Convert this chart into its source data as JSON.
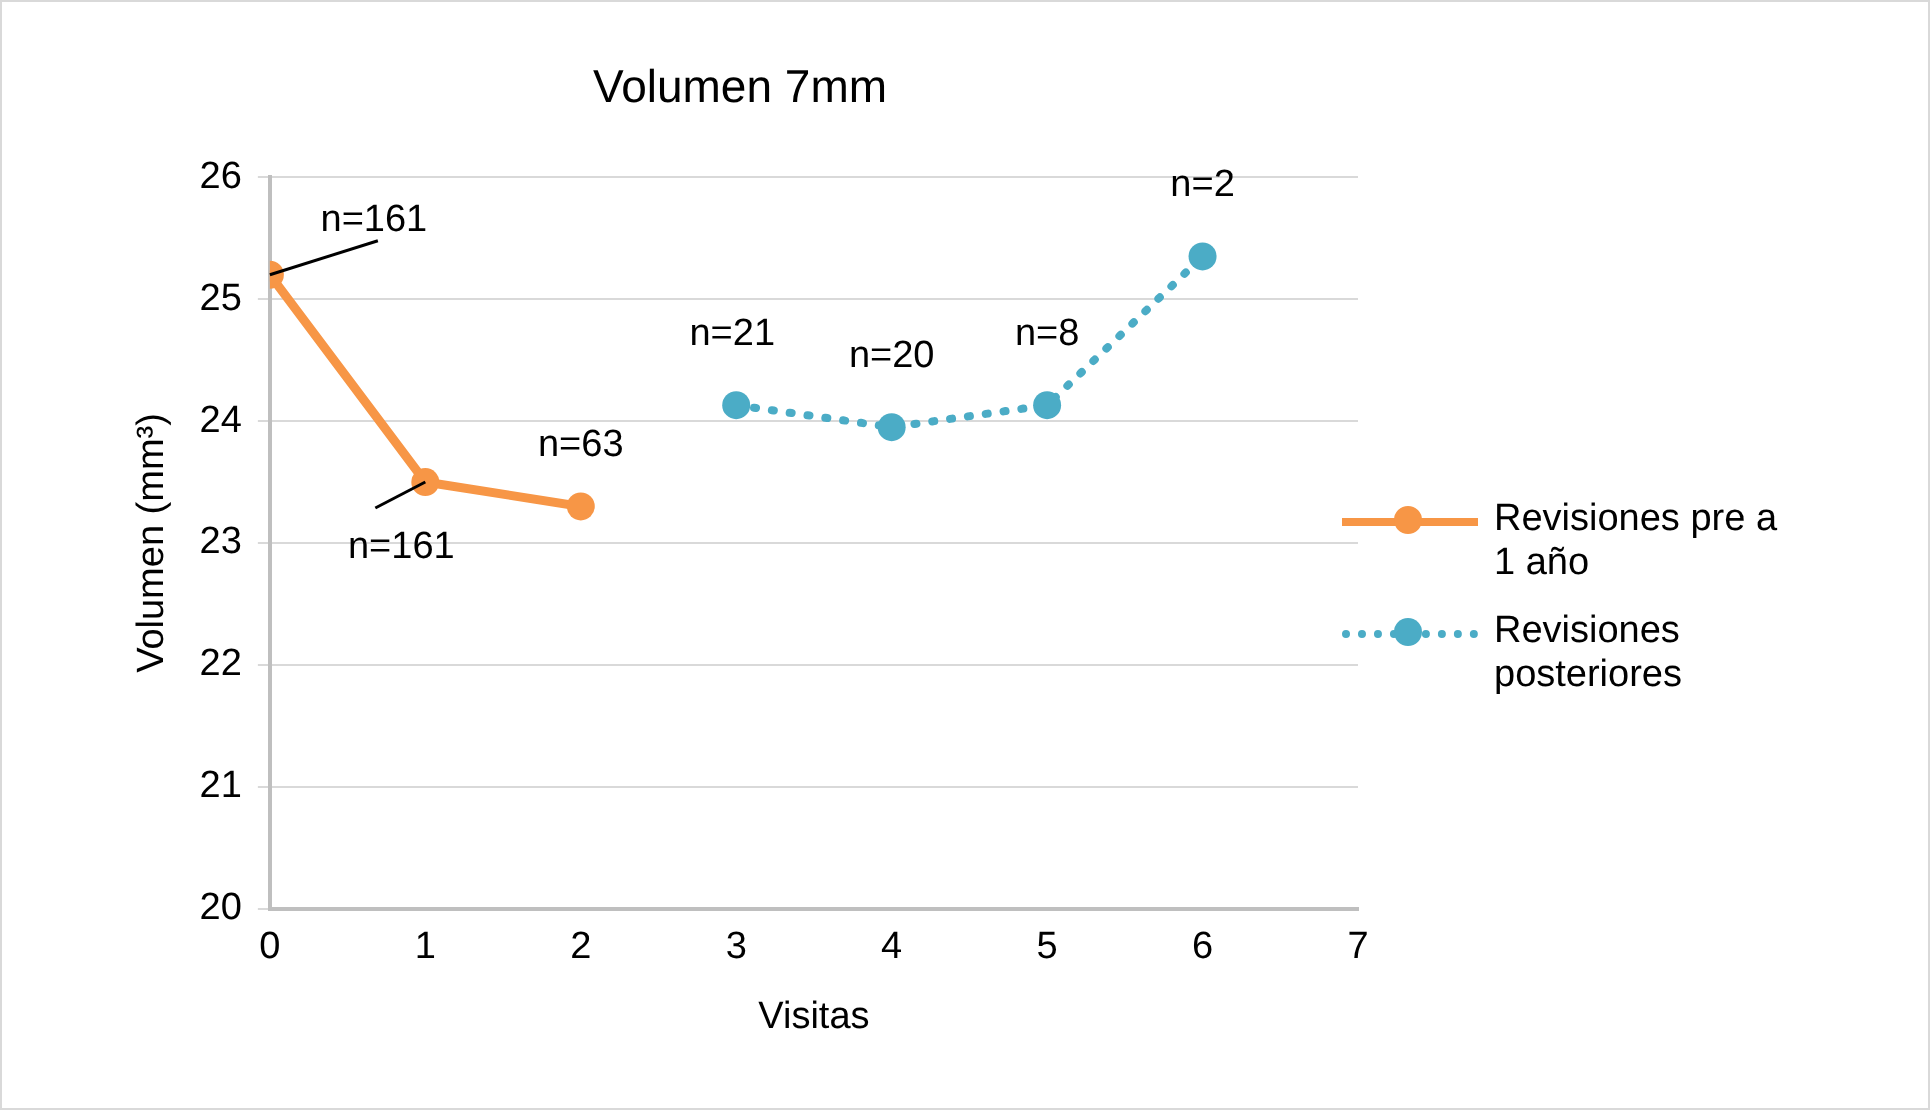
{
  "chart_data": {
    "type": "line",
    "title": "Volumen 7mm",
    "xlabel": "Visitas",
    "ylabel": "Volumen (mm³)",
    "xlim": [
      0,
      7
    ],
    "xticks": [
      0,
      1,
      2,
      3,
      4,
      5,
      6,
      7
    ],
    "ylim": [
      20,
      26
    ],
    "yticks": [
      20,
      21,
      22,
      23,
      24,
      25,
      26
    ],
    "grid": "y",
    "legend": "right",
    "marker": "circle",
    "series": [
      {
        "name": "Revisiones pre a 1 año",
        "color": "#f79646",
        "x": [
          0,
          1,
          2
        ],
        "values": [
          25.2,
          23.5,
          23.3
        ],
        "line_style": "solid"
      },
      {
        "name": "Revisiones posteriores",
        "color": "#4bacc6",
        "x": [
          3,
          4,
          5,
          6
        ],
        "values": [
          24.13,
          23.95,
          24.13,
          25.35
        ],
        "line_style": "dotted"
      }
    ],
    "annotations": [
      {
        "text": "n=161",
        "x": 0,
        "y": 25.2
      },
      {
        "text": "n=161",
        "x": 1,
        "y": 23.5
      },
      {
        "text": "n=63",
        "x": 2,
        "y": 23.3
      },
      {
        "text": "n=21",
        "x": 3,
        "y": 24.13
      },
      {
        "text": "n=20",
        "x": 4,
        "y": 23.95
      },
      {
        "text": "n=8",
        "x": 5,
        "y": 24.13
      },
      {
        "text": "n=2",
        "x": 6,
        "y": 25.35
      }
    ]
  }
}
